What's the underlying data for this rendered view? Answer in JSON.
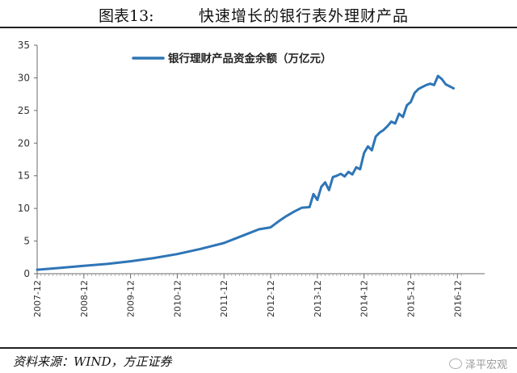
{
  "figure": {
    "label": "图表13:",
    "title": "快速增长的银行表外理财产品",
    "source": "资料来源：WIND，方正证券",
    "watermark": "泽平宏观"
  },
  "chart_data": {
    "type": "line",
    "legend_position": "top",
    "grid": false,
    "ylim": [
      0,
      35
    ],
    "yticks": [
      0,
      5,
      10,
      15,
      20,
      25,
      30,
      35
    ],
    "xticks": [
      "2007-12",
      "2008-12",
      "2009-12",
      "2010-12",
      "2011-12",
      "2012-12",
      "2013-12",
      "2014-12",
      "2015-12",
      "2016-12"
    ],
    "series": [
      {
        "name": "银行理财产品资金余额（万亿元）",
        "color": "#2e75b6",
        "points": [
          [
            "2007-12",
            0.6
          ],
          [
            "2008-06",
            0.9
          ],
          [
            "2008-12",
            1.2
          ],
          [
            "2009-06",
            1.5
          ],
          [
            "2009-12",
            1.9
          ],
          [
            "2010-06",
            2.4
          ],
          [
            "2010-12",
            3.0
          ],
          [
            "2011-06",
            3.8
          ],
          [
            "2011-12",
            4.7
          ],
          [
            "2012-03",
            5.4
          ],
          [
            "2012-06",
            6.1
          ],
          [
            "2012-09",
            6.8
          ],
          [
            "2012-12",
            7.1
          ],
          [
            "2013-02",
            8.0
          ],
          [
            "2013-04",
            8.8
          ],
          [
            "2013-06",
            9.5
          ],
          [
            "2013-08",
            10.1
          ],
          [
            "2013-10",
            10.2
          ],
          [
            "2013-11",
            12.2
          ],
          [
            "2013-12",
            11.3
          ],
          [
            "2014-01",
            13.3
          ],
          [
            "2014-02",
            14.0
          ],
          [
            "2014-03",
            12.8
          ],
          [
            "2014-04",
            14.8
          ],
          [
            "2014-05",
            15.0
          ],
          [
            "2014-06",
            15.3
          ],
          [
            "2014-07",
            14.9
          ],
          [
            "2014-08",
            15.6
          ],
          [
            "2014-09",
            15.2
          ],
          [
            "2014-10",
            16.3
          ],
          [
            "2014-11",
            16.0
          ],
          [
            "2014-12",
            18.5
          ],
          [
            "2015-01",
            19.5
          ],
          [
            "2015-02",
            18.9
          ],
          [
            "2015-03",
            21.0
          ],
          [
            "2015-04",
            21.6
          ],
          [
            "2015-05",
            22.0
          ],
          [
            "2015-06",
            22.6
          ],
          [
            "2015-07",
            23.3
          ],
          [
            "2015-08",
            23.0
          ],
          [
            "2015-09",
            24.5
          ],
          [
            "2015-10",
            24.0
          ],
          [
            "2015-11",
            25.8
          ],
          [
            "2015-12",
            26.3
          ],
          [
            "2016-01",
            27.7
          ],
          [
            "2016-02",
            28.3
          ],
          [
            "2016-03",
            28.6
          ],
          [
            "2016-04",
            28.9
          ],
          [
            "2016-05",
            29.1
          ],
          [
            "2016-06",
            28.9
          ],
          [
            "2016-07",
            30.3
          ],
          [
            "2016-08",
            29.8
          ],
          [
            "2016-09",
            29.0
          ],
          [
            "2016-10",
            28.7
          ],
          [
            "2016-11",
            28.4
          ]
        ]
      }
    ]
  }
}
